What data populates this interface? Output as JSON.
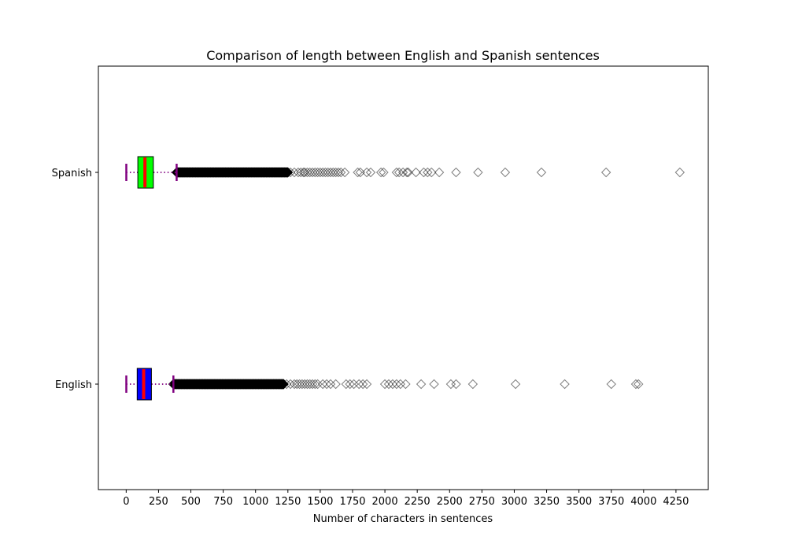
{
  "chart_data": {
    "type": "boxplot",
    "orientation": "horizontal",
    "title": "Comparison of length between English and Spanish sentences",
    "xlabel": "Number of characters in sentences",
    "ylabel": "",
    "xlim": [
      -215,
      4500
    ],
    "xticks": [
      0,
      250,
      500,
      750,
      1000,
      1250,
      1500,
      1750,
      2000,
      2250,
      2500,
      2750,
      3000,
      3250,
      3500,
      3750,
      4000,
      4250
    ],
    "grid": false,
    "legend": "none",
    "categories": [
      "Spanish",
      "English"
    ],
    "series": [
      {
        "category": "Spanish",
        "whisker_low": 1,
        "q1": 90,
        "median": 145,
        "q3": 210,
        "whisker_high": 390,
        "dense_outlier_range": [
          390,
          1250
        ],
        "outliers": [
          1270,
          1300,
          1330,
          1350,
          1370,
          1380,
          1400,
          1420,
          1440,
          1460,
          1480,
          1500,
          1520,
          1540,
          1560,
          1580,
          1600,
          1620,
          1640,
          1660,
          1690,
          1790,
          1810,
          1860,
          1890,
          1970,
          1990,
          2090,
          2110,
          2140,
          2170,
          2180,
          2240,
          2300,
          2330,
          2360,
          2420,
          2550,
          2720,
          2930,
          3210,
          3710,
          4280
        ],
        "box_color": "#00ff00"
      },
      {
        "category": "English",
        "whisker_low": 1,
        "q1": 85,
        "median": 135,
        "q3": 195,
        "whisker_high": 365,
        "dense_outlier_range": [
          365,
          1220
        ],
        "outliers": [
          1240,
          1270,
          1300,
          1320,
          1340,
          1360,
          1380,
          1400,
          1420,
          1440,
          1460,
          1480,
          1520,
          1550,
          1580,
          1620,
          1700,
          1730,
          1760,
          1800,
          1830,
          1860,
          2000,
          2030,
          2060,
          2090,
          2120,
          2160,
          2280,
          2380,
          2510,
          2550,
          2680,
          3010,
          3390,
          3750,
          3940,
          3960
        ],
        "box_color": "#0000ff"
      }
    ],
    "median_color": "#ff0000",
    "whisker_color": "#800080",
    "flier_marker": "diamond"
  }
}
